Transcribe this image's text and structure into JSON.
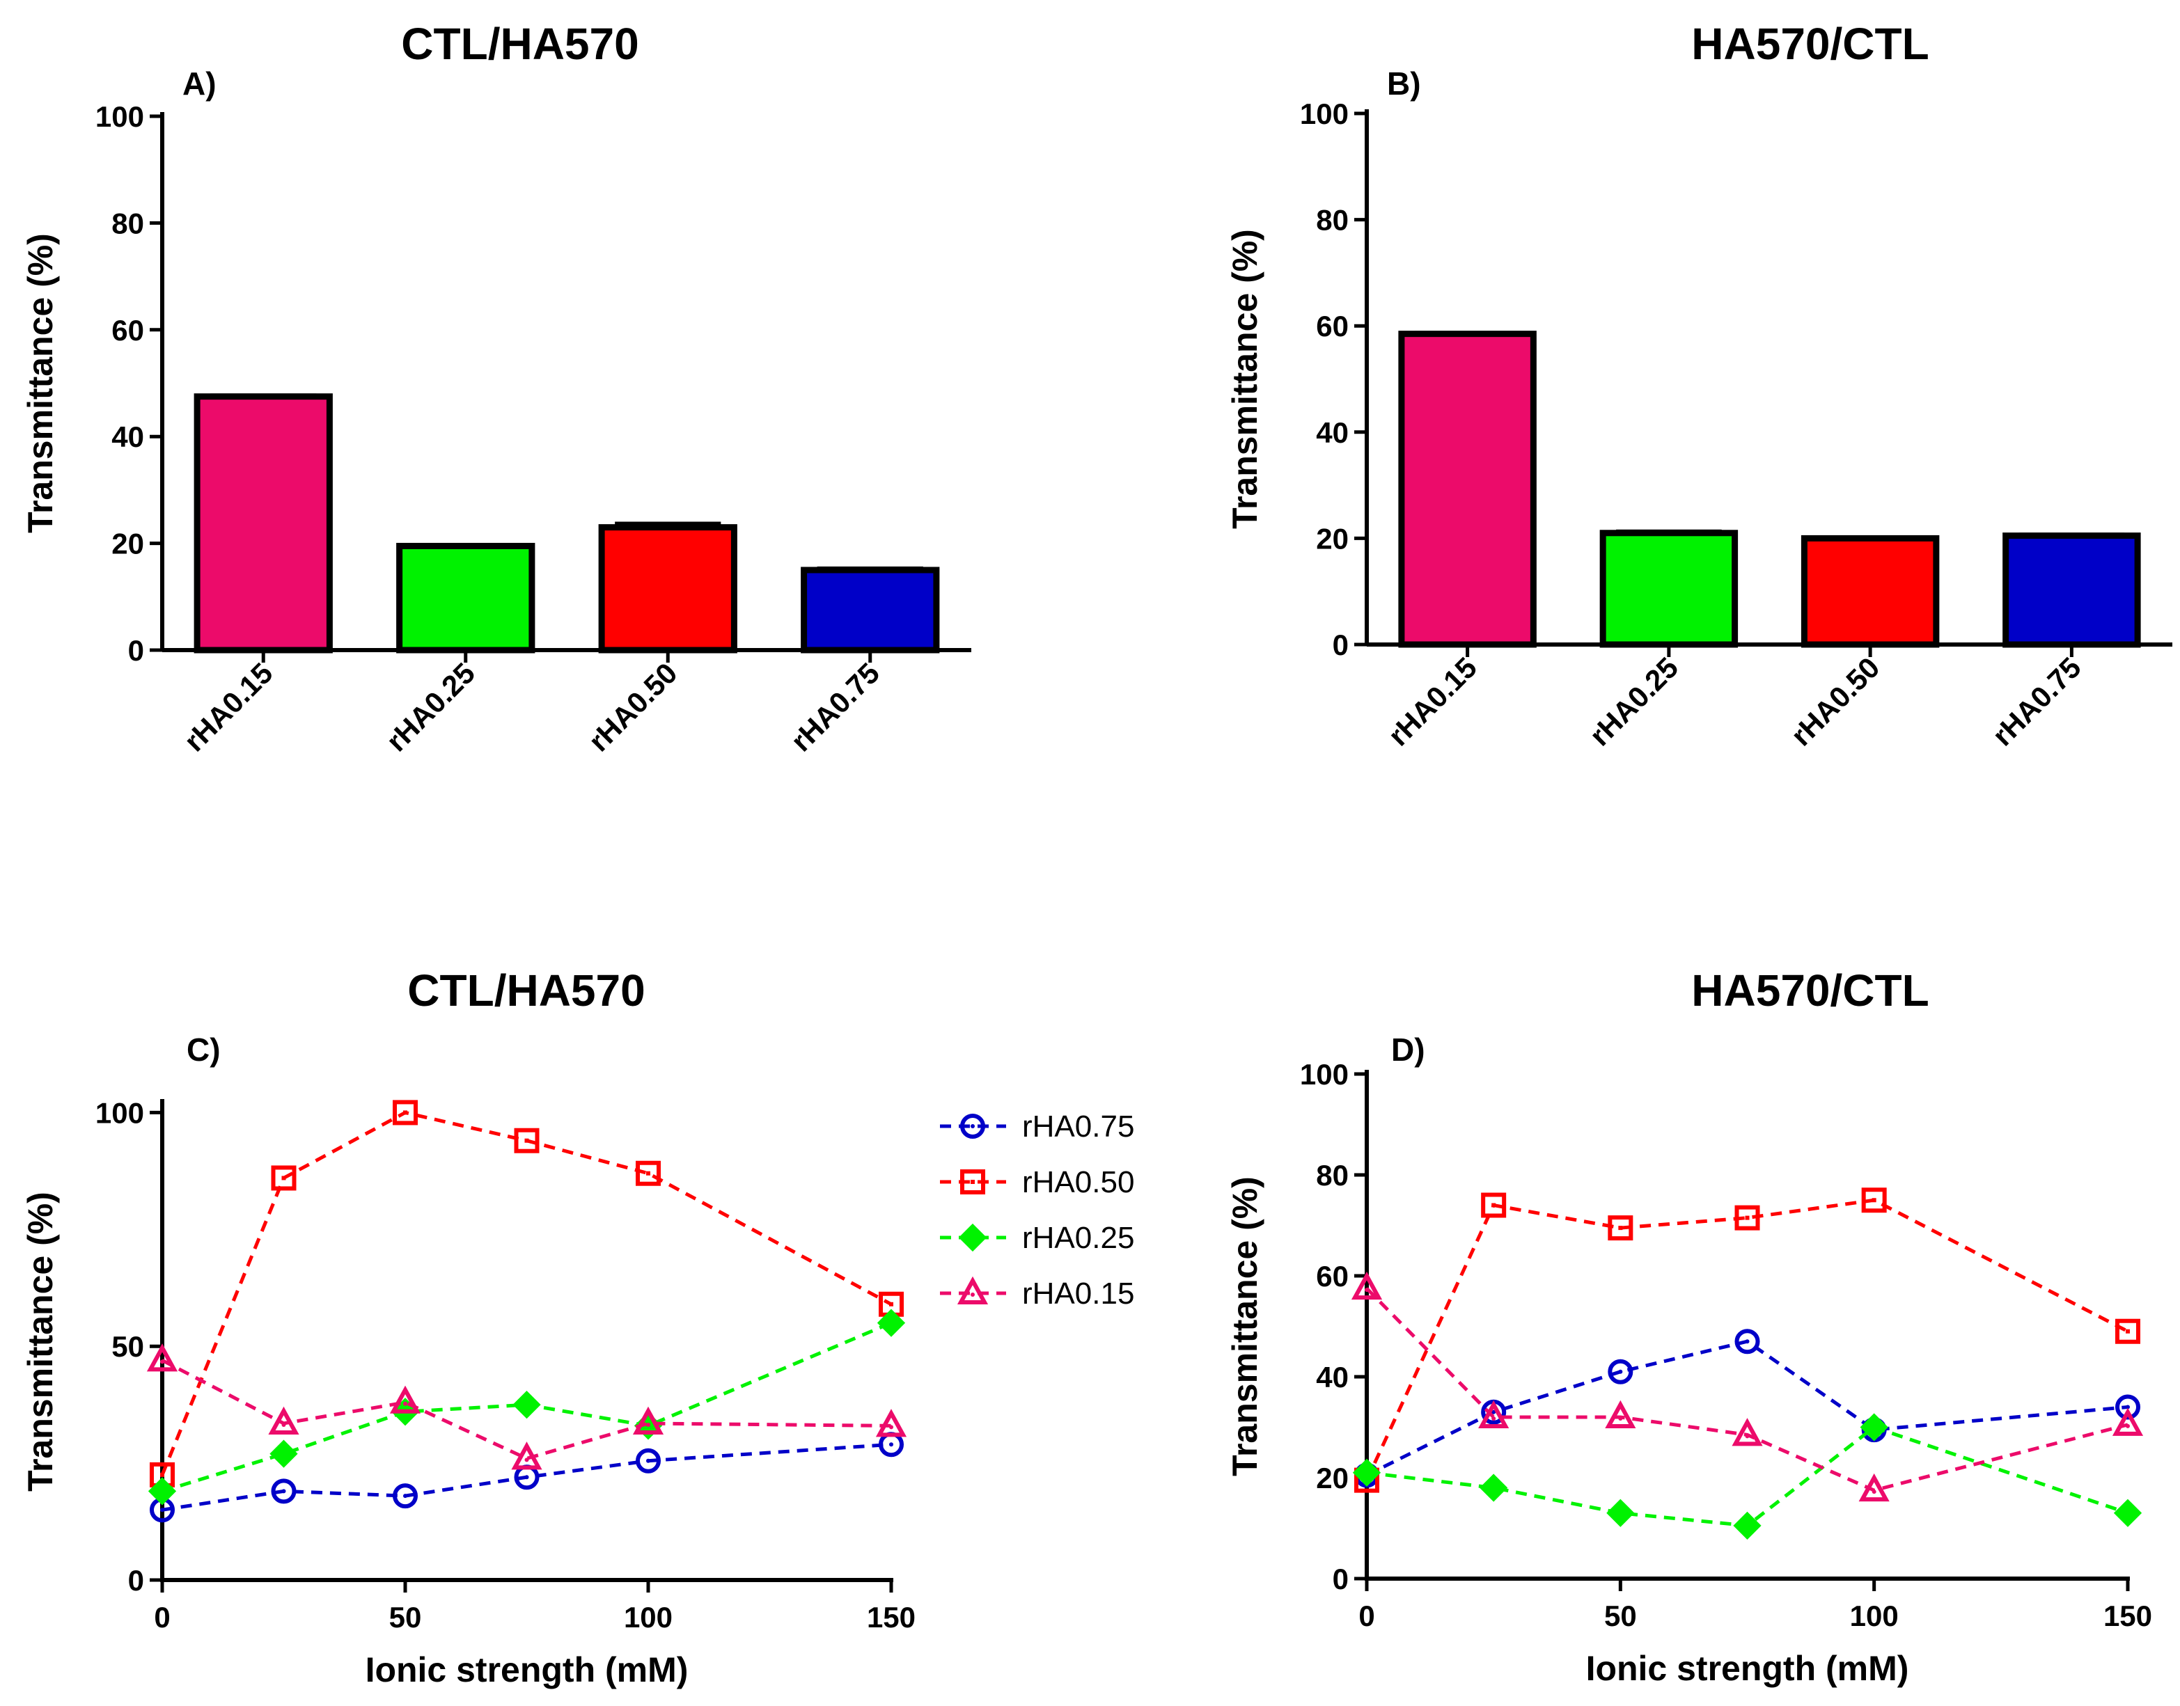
{
  "figure": {
    "panels": [
      {
        "title": "CTL/HA570",
        "label": "A)"
      },
      {
        "title": "HA570/CTL",
        "label": "B)"
      },
      {
        "title": "CTL/HA570",
        "label": "C)"
      },
      {
        "title": "HA570/CTL",
        "label": "D)"
      }
    ],
    "colors": {
      "rHA0.15": "#ec0b6a",
      "rHA0.25": "#00f200",
      "rHA0.50": "#ff0000",
      "rHA0.75": "#0000c8",
      "bar_edge": "#000000"
    }
  },
  "chart_data": [
    {
      "type": "bar",
      "title": "CTL/HA570",
      "panel": "A)",
      "categories": [
        "rHA0.15",
        "rHA0.25",
        "rHA0.50",
        "rHA0.75"
      ],
      "values": [
        47.5,
        19.5,
        23.0,
        15.0
      ],
      "errors": [
        0.3,
        0.3,
        0.8,
        0.4
      ],
      "xlabel": "",
      "ylabel": "Transmittance (%)",
      "ylim": [
        0,
        100
      ],
      "yticks": [
        0,
        20,
        40,
        60,
        80,
        100
      ]
    },
    {
      "type": "bar",
      "title": "HA570/CTL",
      "panel": "B)",
      "categories": [
        "rHA0.15",
        "rHA0.25",
        "rHA0.50",
        "rHA0.75"
      ],
      "values": [
        58.5,
        21.0,
        20.0,
        20.5
      ],
      "errors": [
        0.3,
        0.4,
        0.3,
        0.3
      ],
      "xlabel": "",
      "ylabel": "Transmittance (%)",
      "ylim": [
        0,
        100
      ],
      "yticks": [
        0,
        20,
        40,
        60,
        80,
        100
      ]
    },
    {
      "type": "line",
      "title": "CTL/HA570",
      "panel": "C)",
      "x": [
        0,
        25,
        50,
        75,
        100,
        150
      ],
      "series": [
        {
          "name": "rHA0.75",
          "marker": "circle",
          "values": [
            15,
            19,
            18,
            22,
            25.5,
            29
          ]
        },
        {
          "name": "rHA0.50",
          "marker": "square",
          "values": [
            22.5,
            86,
            100,
            94,
            87,
            59
          ]
        },
        {
          "name": "rHA0.25",
          "marker": "diamond",
          "values": [
            19,
            27,
            36,
            37.5,
            33,
            55
          ]
        },
        {
          "name": "rHA0.15",
          "marker": "triangle",
          "values": [
            47,
            33.5,
            38,
            26,
            33.5,
            33
          ]
        }
      ],
      "xlabel": "Ionic strength (mM)",
      "ylabel": "Transmittance (%)",
      "xlim": [
        0,
        150
      ],
      "ylim": [
        0,
        102
      ],
      "xticks": [
        0,
        50,
        100,
        150
      ],
      "yticks": [
        0,
        50,
        100
      ],
      "legend": "right"
    },
    {
      "type": "line",
      "title": "HA570/CTL",
      "panel": "D)",
      "x": [
        0,
        25,
        50,
        75,
        100,
        150
      ],
      "series": [
        {
          "name": "rHA0.75",
          "marker": "circle",
          "values": [
            20.5,
            33,
            41,
            47,
            29.5,
            34
          ]
        },
        {
          "name": "rHA0.50",
          "marker": "square",
          "values": [
            19.5,
            74,
            69.5,
            71.5,
            75,
            49
          ]
        },
        {
          "name": "rHA0.25",
          "marker": "diamond",
          "values": [
            21,
            18,
            13,
            10.5,
            30,
            13
          ]
        },
        {
          "name": "rHA0.15",
          "marker": "triangle",
          "values": [
            57.5,
            32,
            32,
            28.5,
            17.5,
            30.5
          ]
        }
      ],
      "xlabel": "Ionic strength (mM)",
      "ylabel": "Transmittance (%)",
      "xlim": [
        0,
        150
      ],
      "ylim": [
        0,
        100
      ],
      "xticks": [
        0,
        50,
        100,
        150
      ],
      "yticks": [
        0,
        20,
        40,
        60,
        80,
        100
      ]
    }
  ]
}
